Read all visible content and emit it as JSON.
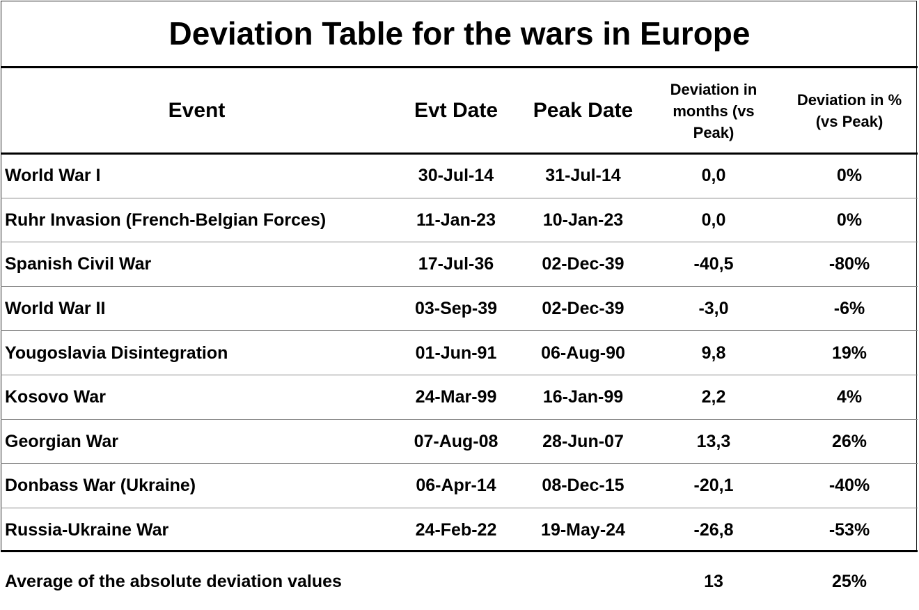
{
  "chart_data": {
    "type": "table",
    "title": "Deviation Table for the wars in Europe",
    "columns": [
      "Event",
      "Evt Date",
      "Peak Date",
      "Deviation in months (vs Peak)",
      "Deviation in % (vs Peak)"
    ],
    "rows": [
      [
        "World War I",
        "30-Jul-14",
        "31-Jul-14",
        "0,0",
        "0%"
      ],
      [
        "Ruhr Invasion (French-Belgian Forces)",
        "11-Jan-23",
        "10-Jan-23",
        "0,0",
        "0%"
      ],
      [
        "Spanish Civil War",
        "17-Jul-36",
        "02-Dec-39",
        "-40,5",
        "-80%"
      ],
      [
        "World War II",
        "03-Sep-39",
        "02-Dec-39",
        "-3,0",
        "-6%"
      ],
      [
        "Yougoslavia Disintegration",
        "01-Jun-91",
        "06-Aug-90",
        "9,8",
        "19%"
      ],
      [
        "Kosovo War",
        "24-Mar-99",
        "16-Jan-99",
        "2,2",
        "4%"
      ],
      [
        "Georgian War",
        "07-Aug-08",
        "28-Jun-07",
        "13,3",
        "26%"
      ],
      [
        "Donbass War (Ukraine)",
        "06-Apr-14",
        "08-Dec-15",
        "-20,1",
        "-40%"
      ],
      [
        "Russia-Ukraine War",
        "24-Feb-22",
        "19-May-24",
        "-26,8",
        "-53%"
      ]
    ],
    "footer": {
      "label": "Average of the absolute deviation values",
      "months": "13",
      "percent": "25%"
    }
  }
}
